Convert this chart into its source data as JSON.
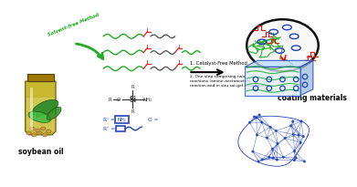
{
  "bg_color": "#ffffff",
  "soybean_label": "soybean oil",
  "coating_label": "coating materials",
  "arrow_label": "Solvent-free Method",
  "step1": "1. Catalyst-Free Method",
  "step2": "2. One step comprising two\nreactions (amine-acetoacetate\nreaction and in situ sol-gel technique)",
  "green_color": "#22aa22",
  "red_color": "#dd2222",
  "blue_color": "#2244bb",
  "dark_color": "#333333",
  "jar_body_color": "#c8b830",
  "jar_lid_color": "#a07800",
  "leaf1_color": "#2a8a2a",
  "leaf2_color": "#44bb44",
  "bean_color": "#c8a040",
  "ellipse_fill": "#f8f8f8",
  "box_front": "#ddeeff",
  "box_top": "#bbddff",
  "box_right": "#99bbdd"
}
